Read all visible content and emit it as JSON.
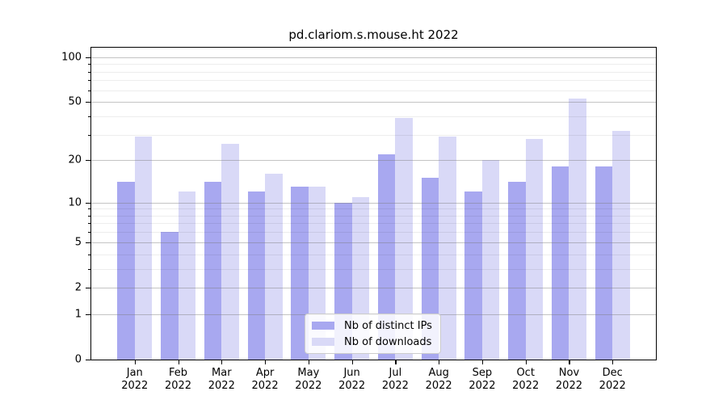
{
  "title": "pd.clariom.s.mouse.ht 2022",
  "legend": {
    "items": [
      {
        "label": "Nb of distinct IPs",
        "color": "#a8a8f0"
      },
      {
        "label": "Nb of downloads",
        "color": "#d9d9f7"
      }
    ]
  },
  "chart_data": {
    "type": "bar",
    "title": "pd.clariom.s.mouse.ht 2022",
    "categories": [
      "Jan 2022",
      "Feb 2022",
      "Mar 2022",
      "Apr 2022",
      "May 2022",
      "Jun 2022",
      "Jul 2022",
      "Aug 2022",
      "Sep 2022",
      "Oct 2022",
      "Nov 2022",
      "Dec 2022"
    ],
    "series": [
      {
        "name": "Nb of distinct IPs",
        "color": "#a8a8f0",
        "values": [
          14,
          6,
          14,
          12,
          13,
          10,
          22,
          15,
          12,
          14,
          18,
          18
        ]
      },
      {
        "name": "Nb of downloads",
        "color": "#d9d9f7",
        "values": [
          29,
          12,
          26,
          16,
          13,
          11,
          39,
          29,
          20,
          28,
          53,
          32
        ]
      }
    ],
    "xlabel": "",
    "ylabel": "",
    "y_axis": {
      "scale": "log1p",
      "ticks": [
        0,
        1,
        2,
        5,
        10,
        20,
        50,
        100
      ],
      "minor_ticks": [
        3,
        4,
        6,
        7,
        8,
        9,
        30,
        40,
        60,
        70,
        80,
        90
      ],
      "ylim": [
        0,
        116
      ]
    },
    "grid": true,
    "legend_position": "bottom-center"
  }
}
